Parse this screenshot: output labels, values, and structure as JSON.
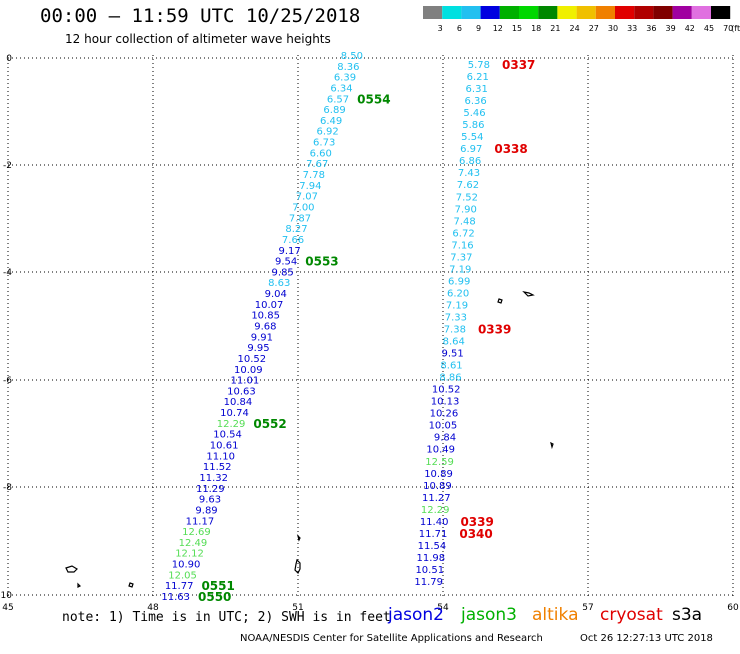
{
  "header": {
    "title": "00:00 – 11:59 UTC 10/25/2018",
    "subtitle": "12 hour collection of altimeter wave heights"
  },
  "legend": {
    "unit": "(ft)",
    "bins": [
      {
        "label": "3",
        "color": "#808080"
      },
      {
        "label": "6",
        "color": "#00e0e0"
      },
      {
        "label": "9",
        "color": "#22c0f0"
      },
      {
        "label": "12",
        "color": "#0000e0"
      },
      {
        "label": "15",
        "color": "#00b000"
      },
      {
        "label": "18",
        "color": "#00d800"
      },
      {
        "label": "21",
        "color": "#008800"
      },
      {
        "label": "24",
        "color": "#f0f000"
      },
      {
        "label": "27",
        "color": "#f0c000"
      },
      {
        "label": "30",
        "color": "#f08000"
      },
      {
        "label": "33",
        "color": "#e00000"
      },
      {
        "label": "36",
        "color": "#b00000"
      },
      {
        "label": "39",
        "color": "#800000"
      },
      {
        "label": "42",
        "color": "#a000a0"
      },
      {
        "label": "45",
        "color": "#e070e0"
      },
      {
        "label": "70",
        "color": "#000000"
      }
    ]
  },
  "axes": {
    "x_ticks": [
      "45",
      "48",
      "51",
      "54",
      "57",
      "60"
    ],
    "y_ticks": [
      "0",
      "-2",
      "-4",
      "-6",
      "-8",
      "-10"
    ]
  },
  "footer": {
    "note": "note: 1) Time is in UTC; 2) SWH is in feet",
    "credit": "NOAA/NESDIS Center for Satellite Applications and Research",
    "timestamp": "Oct 26 12:27:13 UTC 2018",
    "missions": [
      {
        "label": "jason2",
        "color": "#0000e0"
      },
      {
        "label": "jason3",
        "color": "#00b000"
      },
      {
        "label": "altika",
        "color": "#f08000"
      },
      {
        "label": "cryosat",
        "color": "#e00000"
      },
      {
        "label": "s3a",
        "color": "#000000"
      }
    ]
  },
  "colors": {
    "light": "#22c0f0",
    "blue": "#0000d0",
    "green": "#55dd55",
    "time_green": "#008800",
    "time_red": "#e00000"
  },
  "track_west": {
    "heights": [
      {
        "v": "8.50",
        "c": "light"
      },
      {
        "v": "8.36",
        "c": "light"
      },
      {
        "v": "6.39",
        "c": "light"
      },
      {
        "v": "6.34",
        "c": "light"
      },
      {
        "v": "6.57",
        "c": "light"
      },
      {
        "v": "6.89",
        "c": "light"
      },
      {
        "v": "6.49",
        "c": "light"
      },
      {
        "v": "6.92",
        "c": "light"
      },
      {
        "v": "6.73",
        "c": "light"
      },
      {
        "v": "6.60",
        "c": "light"
      },
      {
        "v": "7.67",
        "c": "light"
      },
      {
        "v": "7.78",
        "c": "light"
      },
      {
        "v": "7.94",
        "c": "light"
      },
      {
        "v": "7.07",
        "c": "light"
      },
      {
        "v": "7.00",
        "c": "light"
      },
      {
        "v": "7.87",
        "c": "light"
      },
      {
        "v": "8.27",
        "c": "light"
      },
      {
        "v": "7.66",
        "c": "light"
      },
      {
        "v": "9.17",
        "c": "blue"
      },
      {
        "v": "9.54",
        "c": "blue"
      },
      {
        "v": "9.85",
        "c": "blue"
      },
      {
        "v": "8.63",
        "c": "light"
      },
      {
        "v": "9.04",
        "c": "blue"
      },
      {
        "v": "10.07",
        "c": "blue"
      },
      {
        "v": "10.85",
        "c": "blue"
      },
      {
        "v": "9.68",
        "c": "blue"
      },
      {
        "v": "9.91",
        "c": "blue"
      },
      {
        "v": "9.95",
        "c": "blue"
      },
      {
        "v": "10.52",
        "c": "blue"
      },
      {
        "v": "10.09",
        "c": "blue"
      },
      {
        "v": "11.01",
        "c": "blue"
      },
      {
        "v": "10.63",
        "c": "blue"
      },
      {
        "v": "10.84",
        "c": "blue"
      },
      {
        "v": "10.74",
        "c": "blue"
      },
      {
        "v": "12.29",
        "c": "green"
      },
      {
        "v": "10.54",
        "c": "blue"
      },
      {
        "v": "10.61",
        "c": "blue"
      },
      {
        "v": "11.10",
        "c": "blue"
      },
      {
        "v": "11.52",
        "c": "blue"
      },
      {
        "v": "11.32",
        "c": "blue"
      },
      {
        "v": "11.29",
        "c": "blue"
      },
      {
        "v": "9.63",
        "c": "blue"
      },
      {
        "v": "9.89",
        "c": "blue"
      },
      {
        "v": "11.17",
        "c": "blue"
      },
      {
        "v": "12.69",
        "c": "green"
      },
      {
        "v": "12.49",
        "c": "green"
      },
      {
        "v": "12.12",
        "c": "green"
      },
      {
        "v": "10.90",
        "c": "blue"
      },
      {
        "v": "12.05",
        "c": "green"
      },
      {
        "v": "11.77",
        "c": "blue"
      },
      {
        "v": "11.63",
        "c": "blue"
      }
    ],
    "times": [
      {
        "label": "0554",
        "row": 4
      },
      {
        "label": "0553",
        "row": 19
      },
      {
        "label": "0552",
        "row": 34
      },
      {
        "label": "0551",
        "row": 49
      },
      {
        "label": "0550",
        "row": 50
      }
    ]
  },
  "track_east": {
    "heights": [
      {
        "v": "5.78",
        "c": "light"
      },
      {
        "v": "6.21",
        "c": "light"
      },
      {
        "v": "6.31",
        "c": "light"
      },
      {
        "v": "6.36",
        "c": "light"
      },
      {
        "v": "5.46",
        "c": "light"
      },
      {
        "v": "5.86",
        "c": "light"
      },
      {
        "v": "5.54",
        "c": "light"
      },
      {
        "v": "6.97",
        "c": "light"
      },
      {
        "v": "6.86",
        "c": "light"
      },
      {
        "v": "7.43",
        "c": "light"
      },
      {
        "v": "7.62",
        "c": "light"
      },
      {
        "v": "7.52",
        "c": "light"
      },
      {
        "v": "7.90",
        "c": "light"
      },
      {
        "v": "7.48",
        "c": "light"
      },
      {
        "v": "6.72",
        "c": "light"
      },
      {
        "v": "7.16",
        "c": "light"
      },
      {
        "v": "7.37",
        "c": "light"
      },
      {
        "v": "7.19",
        "c": "light"
      },
      {
        "v": "6.99",
        "c": "light"
      },
      {
        "v": "6.20",
        "c": "light"
      },
      {
        "v": "7.19",
        "c": "light"
      },
      {
        "v": "7.33",
        "c": "light"
      },
      {
        "v": "7.38",
        "c": "light"
      },
      {
        "v": "8.64",
        "c": "light"
      },
      {
        "v": "9.51",
        "c": "blue"
      },
      {
        "v": "8.61",
        "c": "light"
      },
      {
        "v": "8.86",
        "c": "light"
      },
      {
        "v": "10.52",
        "c": "blue"
      },
      {
        "v": "10.13",
        "c": "blue"
      },
      {
        "v": "10.26",
        "c": "blue"
      },
      {
        "v": "10.05",
        "c": "blue"
      },
      {
        "v": "9.84",
        "c": "blue"
      },
      {
        "v": "10.49",
        "c": "blue"
      },
      {
        "v": "12.59",
        "c": "green"
      },
      {
        "v": "10.89",
        "c": "blue"
      },
      {
        "v": "10.89",
        "c": "blue"
      },
      {
        "v": "11.27",
        "c": "blue"
      },
      {
        "v": "12.29",
        "c": "green"
      },
      {
        "v": "11.40",
        "c": "blue"
      },
      {
        "v": "11.71",
        "c": "blue"
      },
      {
        "v": "11.54",
        "c": "blue"
      },
      {
        "v": "11.98",
        "c": "blue"
      },
      {
        "v": "10.51",
        "c": "blue"
      },
      {
        "v": "11.79",
        "c": "blue"
      }
    ],
    "times": [
      {
        "label": "0337",
        "row": 0
      },
      {
        "label": "0338",
        "row": 7
      },
      {
        "label": "0339",
        "row": 22
      },
      {
        "label": "0339",
        "row": 38
      },
      {
        "label": "0340",
        "row": 39
      }
    ]
  }
}
